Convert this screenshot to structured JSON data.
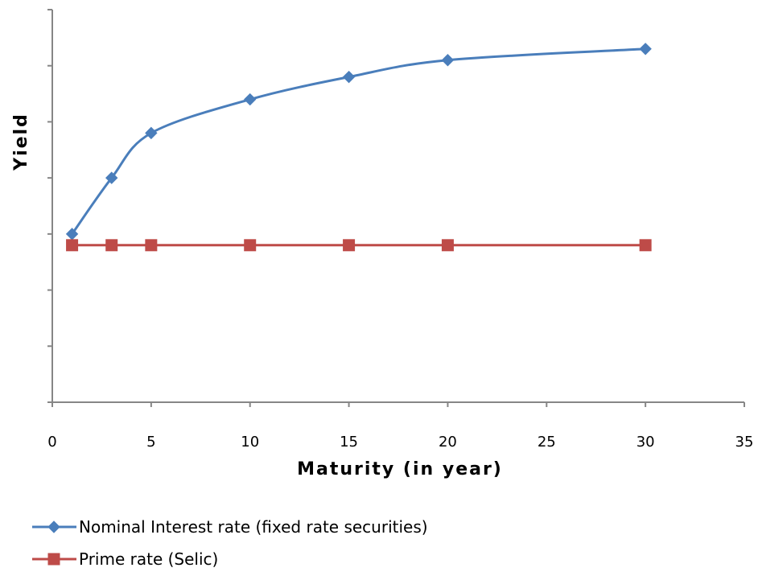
{
  "chart_data": {
    "type": "line",
    "title": "",
    "xlabel": "Maturity (in year)",
    "ylabel": "Yield",
    "xlim": [
      0,
      35
    ],
    "xticks": [
      0,
      5,
      10,
      15,
      20,
      25,
      30,
      35
    ],
    "ylim": [
      0,
      7
    ],
    "yticks_labeled": false,
    "grid": false,
    "legend_position": "bottom",
    "series": [
      {
        "name": "Nominal Interest rate (fixed rate securities)",
        "color": "#4a7ebb",
        "marker": "diamond",
        "smooth": true,
        "x": [
          1,
          3,
          5,
          10,
          15,
          20,
          30
        ],
        "y": [
          3.0,
          4.0,
          4.8,
          5.4,
          5.8,
          6.1,
          6.3
        ]
      },
      {
        "name": "Prime rate (Selic)",
        "color": "#be4b48",
        "marker": "square",
        "smooth": false,
        "x": [
          1,
          3,
          5,
          10,
          15,
          20,
          30
        ],
        "y": [
          2.8,
          2.8,
          2.8,
          2.8,
          2.8,
          2.8,
          2.8
        ]
      }
    ]
  }
}
